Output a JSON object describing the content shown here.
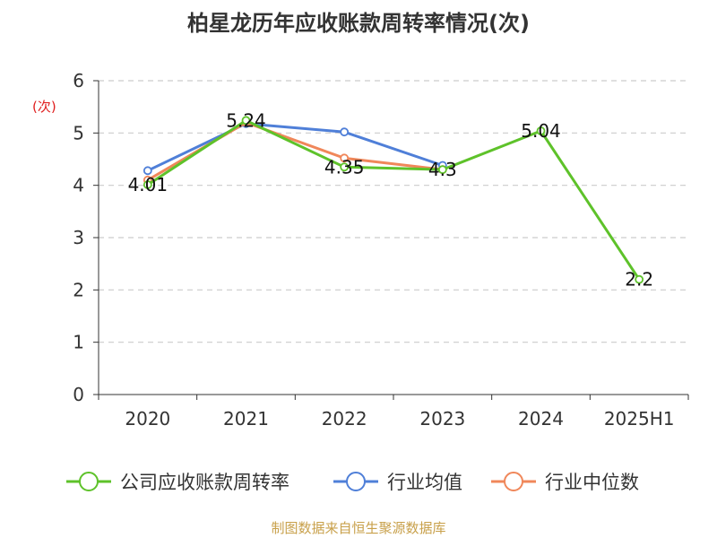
{
  "chart_data": {
    "type": "line",
    "title": "柏星龙历年应收账款周转率情况(次)",
    "ylabel": "(次)",
    "categories": [
      "2020",
      "2021",
      "2022",
      "2023",
      "2024",
      "2025H1"
    ],
    "ylim": [
      0,
      6
    ],
    "yticks": [
      0,
      1,
      2,
      3,
      4,
      5,
      6
    ],
    "grid": true,
    "legend_position": "bottom",
    "series": [
      {
        "name": "公司应收账款周转率",
        "color": "#5ec22a",
        "values": [
          4.01,
          5.24,
          4.35,
          4.3,
          5.04,
          2.2
        ],
        "labels": [
          "4.01",
          "5.24",
          "4.35",
          "4.3",
          "5.04",
          "2.2"
        ]
      },
      {
        "name": "行业均值",
        "color": "#4f7fd8",
        "values": [
          4.28,
          5.18,
          5.02,
          4.38,
          null,
          null
        ]
      },
      {
        "name": "行业中位数",
        "color": "#f0875a",
        "values": [
          4.1,
          5.2,
          4.52,
          4.3,
          null,
          null
        ]
      }
    ]
  },
  "source": "制图数据来自恒生聚源数据库"
}
